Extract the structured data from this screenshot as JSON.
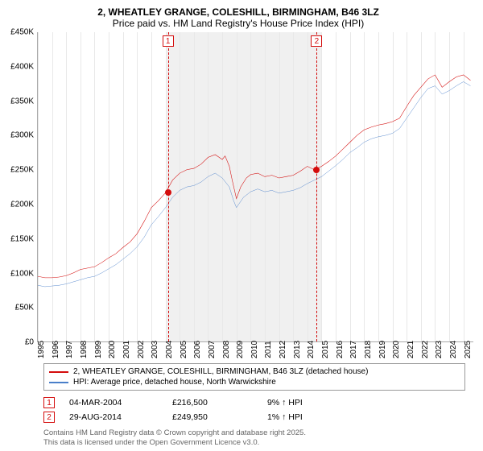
{
  "title_line1": "2, WHEATLEY GRANGE, COLESHILL, BIRMINGHAM, B46 3LZ",
  "title_line2": "Price paid vs. HM Land Registry's House Price Index (HPI)",
  "chart": {
    "type": "line",
    "background_color": "#ffffff",
    "grid_color": "#e8e8e8",
    "band_color": "#f0f0f0",
    "axis_color": "#aaaaaa",
    "tick_fontsize": 10,
    "xlim": [
      1995,
      2025.7
    ],
    "ylim": [
      0,
      450000
    ],
    "ytick_step": 50000,
    "ytick_labels": [
      "£0",
      "£50K",
      "£100K",
      "£150K",
      "£200K",
      "£250K",
      "£300K",
      "£350K",
      "£400K",
      "£450K"
    ],
    "xticks": [
      1995,
      1996,
      1997,
      1998,
      1999,
      2000,
      2001,
      2002,
      2003,
      2004,
      2005,
      2006,
      2007,
      2008,
      2009,
      2010,
      2011,
      2012,
      2013,
      2014,
      2015,
      2016,
      2017,
      2018,
      2019,
      2020,
      2021,
      2022,
      2023,
      2024,
      2025
    ],
    "xband_start": 2004,
    "xband_end": 2015,
    "series": [
      {
        "name": "2, WHEATLEY GRANGE, COLESHILL, BIRMINGHAM, B46 3LZ (detached house)",
        "color": "#d40c0c",
        "line_width": 2.2,
        "data": [
          [
            1995,
            95000
          ],
          [
            1995.5,
            93000
          ],
          [
            1996,
            93000
          ],
          [
            1996.5,
            94000
          ],
          [
            1997,
            96000
          ],
          [
            1997.5,
            100000
          ],
          [
            1998,
            105000
          ],
          [
            1998.5,
            107000
          ],
          [
            1999,
            109000
          ],
          [
            1999.5,
            115000
          ],
          [
            2000,
            122000
          ],
          [
            2000.5,
            128000
          ],
          [
            2001,
            137000
          ],
          [
            2001.5,
            145000
          ],
          [
            2002,
            157000
          ],
          [
            2002.5,
            175000
          ],
          [
            2003,
            195000
          ],
          [
            2003.5,
            205000
          ],
          [
            2004,
            216500
          ],
          [
            2004.5,
            235000
          ],
          [
            2005,
            245000
          ],
          [
            2005.5,
            250000
          ],
          [
            2006,
            252000
          ],
          [
            2006.5,
            258000
          ],
          [
            2007,
            268000
          ],
          [
            2007.5,
            272000
          ],
          [
            2008,
            265000
          ],
          [
            2008.2,
            270000
          ],
          [
            2008.5,
            255000
          ],
          [
            2008.7,
            235000
          ],
          [
            2009,
            208000
          ],
          [
            2009.3,
            225000
          ],
          [
            2009.7,
            238000
          ],
          [
            2010,
            243000
          ],
          [
            2010.5,
            245000
          ],
          [
            2011,
            240000
          ],
          [
            2011.5,
            242000
          ],
          [
            2012,
            238000
          ],
          [
            2012.5,
            240000
          ],
          [
            2013,
            242000
          ],
          [
            2013.5,
            248000
          ],
          [
            2014,
            255000
          ],
          [
            2014.5,
            249950
          ],
          [
            2015,
            255000
          ],
          [
            2015.5,
            262000
          ],
          [
            2016,
            270000
          ],
          [
            2016.5,
            280000
          ],
          [
            2017,
            290000
          ],
          [
            2017.5,
            300000
          ],
          [
            2018,
            308000
          ],
          [
            2018.5,
            312000
          ],
          [
            2019,
            315000
          ],
          [
            2019.5,
            317000
          ],
          [
            2020,
            320000
          ],
          [
            2020.5,
            325000
          ],
          [
            2021,
            342000
          ],
          [
            2021.5,
            358000
          ],
          [
            2022,
            370000
          ],
          [
            2022.5,
            382000
          ],
          [
            2023,
            388000
          ],
          [
            2023.5,
            370000
          ],
          [
            2024,
            378000
          ],
          [
            2024.5,
            385000
          ],
          [
            2025,
            388000
          ],
          [
            2025.5,
            380000
          ]
        ]
      },
      {
        "name": "HPI: Average price, detached house, North Warwickshire",
        "color": "#4a7fc9",
        "line_width": 1.8,
        "data": [
          [
            1995,
            82000
          ],
          [
            1995.5,
            80000
          ],
          [
            1996,
            81000
          ],
          [
            1996.5,
            82000
          ],
          [
            1997,
            84000
          ],
          [
            1997.5,
            87000
          ],
          [
            1998,
            90000
          ],
          [
            1998.5,
            93000
          ],
          [
            1999,
            95000
          ],
          [
            1999.5,
            100000
          ],
          [
            2000,
            106000
          ],
          [
            2000.5,
            112000
          ],
          [
            2001,
            120000
          ],
          [
            2001.5,
            128000
          ],
          [
            2002,
            138000
          ],
          [
            2002.5,
            152000
          ],
          [
            2003,
            170000
          ],
          [
            2003.5,
            182000
          ],
          [
            2004,
            195000
          ],
          [
            2004.5,
            210000
          ],
          [
            2005,
            220000
          ],
          [
            2005.5,
            225000
          ],
          [
            2006,
            227000
          ],
          [
            2006.5,
            232000
          ],
          [
            2007,
            240000
          ],
          [
            2007.5,
            245000
          ],
          [
            2008,
            238000
          ],
          [
            2008.5,
            225000
          ],
          [
            2008.8,
            205000
          ],
          [
            2009,
            195000
          ],
          [
            2009.5,
            210000
          ],
          [
            2010,
            218000
          ],
          [
            2010.5,
            222000
          ],
          [
            2011,
            218000
          ],
          [
            2011.5,
            220000
          ],
          [
            2012,
            216000
          ],
          [
            2012.5,
            218000
          ],
          [
            2013,
            220000
          ],
          [
            2013.5,
            224000
          ],
          [
            2014,
            230000
          ],
          [
            2014.5,
            235000
          ],
          [
            2015,
            240000
          ],
          [
            2015.5,
            248000
          ],
          [
            2016,
            256000
          ],
          [
            2016.5,
            265000
          ],
          [
            2017,
            275000
          ],
          [
            2017.5,
            282000
          ],
          [
            2018,
            290000
          ],
          [
            2018.5,
            295000
          ],
          [
            2019,
            298000
          ],
          [
            2019.5,
            300000
          ],
          [
            2020,
            303000
          ],
          [
            2020.5,
            310000
          ],
          [
            2021,
            325000
          ],
          [
            2021.5,
            340000
          ],
          [
            2022,
            355000
          ],
          [
            2022.5,
            368000
          ],
          [
            2023,
            372000
          ],
          [
            2023.5,
            360000
          ],
          [
            2024,
            365000
          ],
          [
            2024.5,
            372000
          ],
          [
            2025,
            378000
          ],
          [
            2025.5,
            372000
          ]
        ]
      }
    ],
    "markers": [
      {
        "label": "1",
        "x": 2004.17,
        "y": 216500,
        "color": "#d40c0c"
      },
      {
        "label": "2",
        "x": 2014.66,
        "y": 249950,
        "color": "#d40c0c"
      }
    ]
  },
  "legend": {
    "items": [
      {
        "label": "2, WHEATLEY GRANGE, COLESHILL, BIRMINGHAM, B46 3LZ (detached house)",
        "color": "#d40c0c"
      },
      {
        "label": "HPI: Average price, detached house, North Warwickshire",
        "color": "#4a7fc9"
      }
    ]
  },
  "sales": [
    {
      "marker": "1",
      "marker_color": "#d40c0c",
      "date": "04-MAR-2004",
      "price": "£216,500",
      "pct": "9% ↑ HPI"
    },
    {
      "marker": "2",
      "marker_color": "#d40c0c",
      "date": "29-AUG-2014",
      "price": "£249,950",
      "pct": "1% ↑ HPI"
    }
  ],
  "attribution_line1": "Contains HM Land Registry data © Crown copyright and database right 2025.",
  "attribution_line2": "This data is licensed under the Open Government Licence v3.0."
}
